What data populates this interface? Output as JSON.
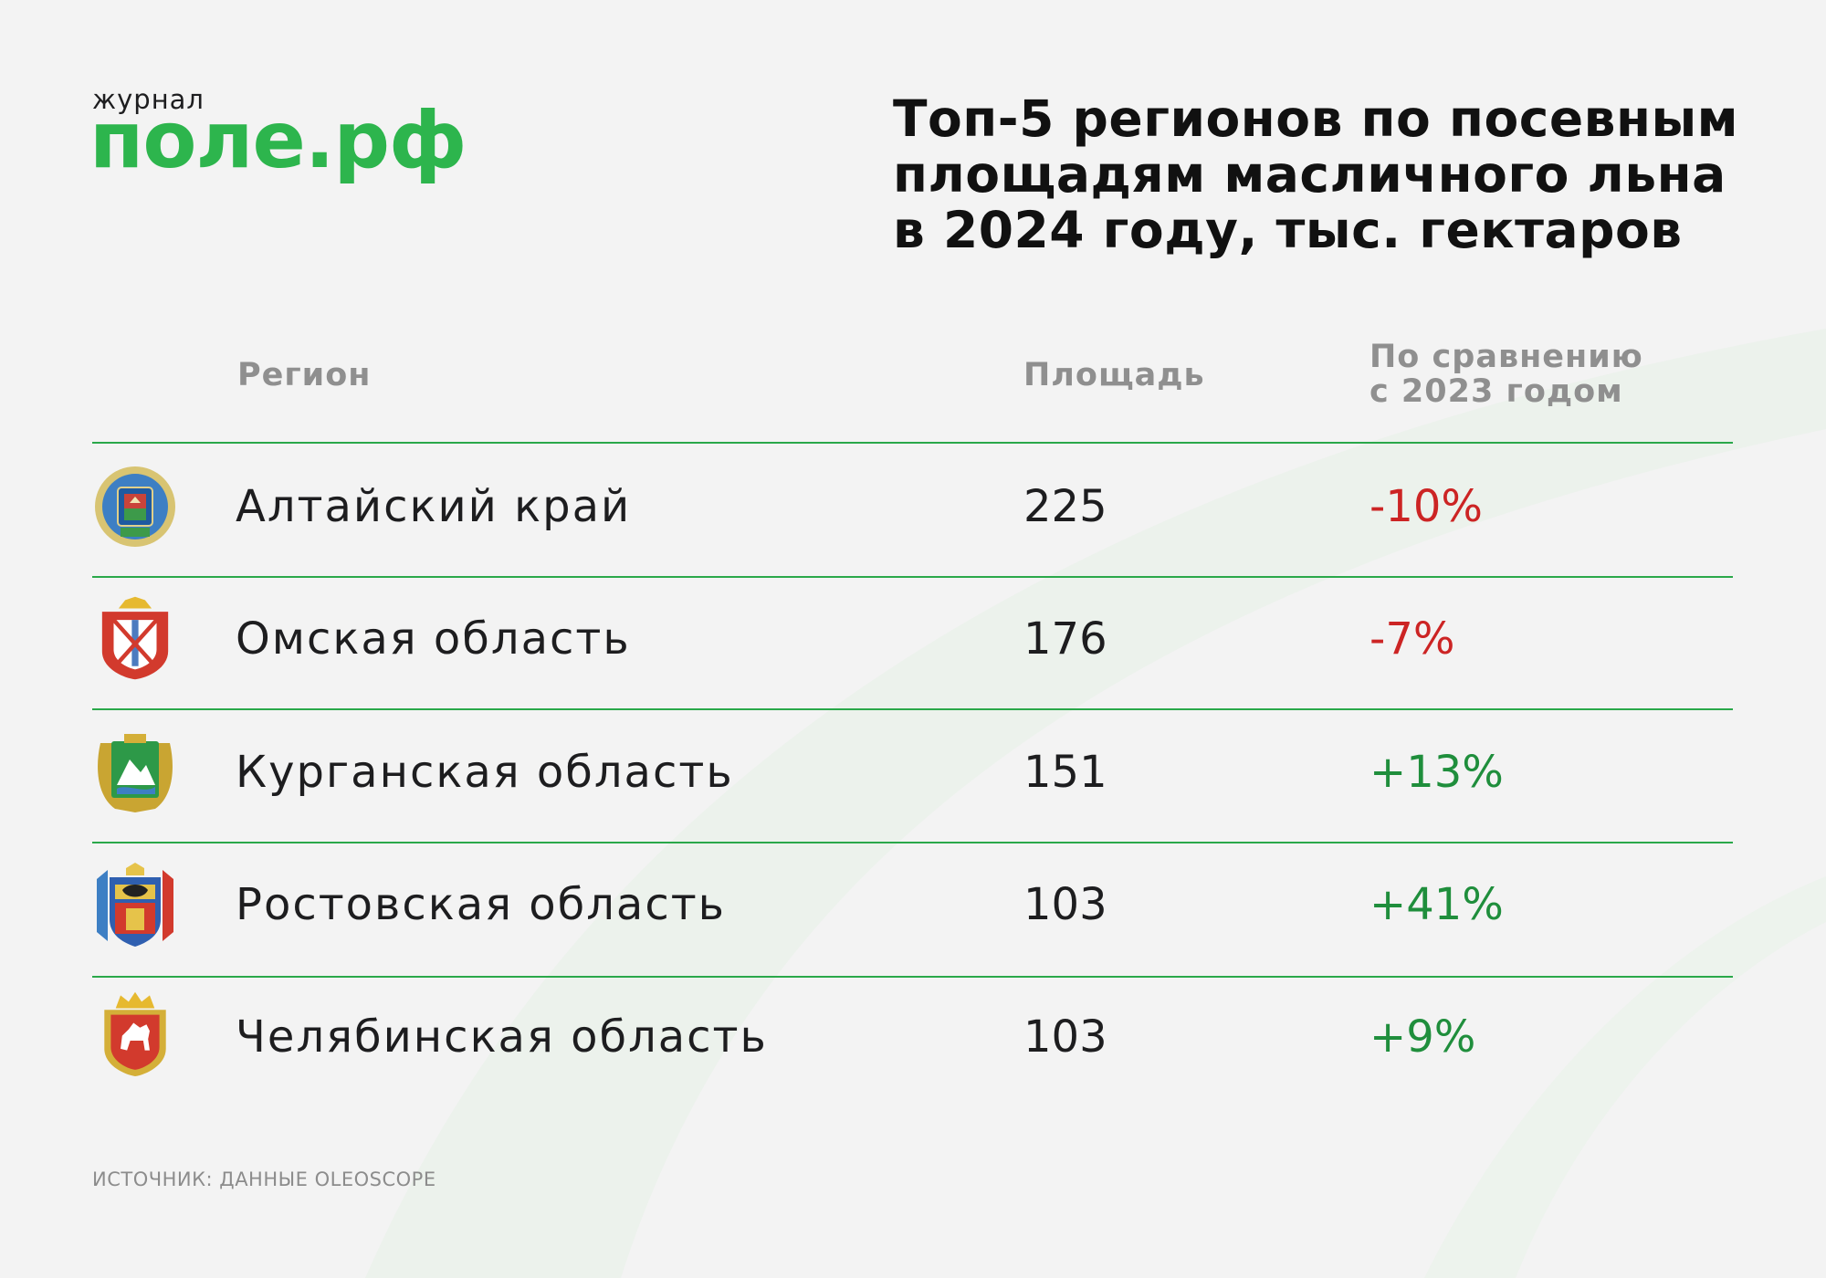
{
  "logo": {
    "small": "журнал",
    "main": "поле.рф",
    "color": "#2db54d"
  },
  "title": [
    "Топ-5 регионов по посевным",
    "площадям масличного льна",
    "в 2024 году, тыс. гектаров"
  ],
  "headers": {
    "region": "Регион",
    "area": "Площадь",
    "comparison": [
      "По сравнению",
      "с 2023 годом"
    ]
  },
  "rows": [
    {
      "name": "Алтайский край",
      "area": "225",
      "change": "-10%",
      "emblem": "altai-krai-coat-of-arms-icon"
    },
    {
      "name": "Омская область",
      "area": "176",
      "change": "-7%",
      "emblem": "omsk-oblast-coat-of-arms-icon"
    },
    {
      "name": "Курганская область",
      "area": "151",
      "change": "+13%",
      "emblem": "kurgan-oblast-coat-of-arms-icon"
    },
    {
      "name": "Ростовская область",
      "area": "103",
      "change": "+41%",
      "emblem": "rostov-oblast-coat-of-arms-icon"
    },
    {
      "name": "Челябинская область",
      "area": "103",
      "change": "+9%",
      "emblem": "chelyabinsk-oblast-coat-of-arms-icon"
    }
  ],
  "source": "ИСТОЧНИК: ДАННЫЕ OLEOSCOPE",
  "colors": {
    "accent": "#2db54d",
    "negative": "#cc2424",
    "positive": "#1f8e3c",
    "rule": "#2aa84a"
  }
}
